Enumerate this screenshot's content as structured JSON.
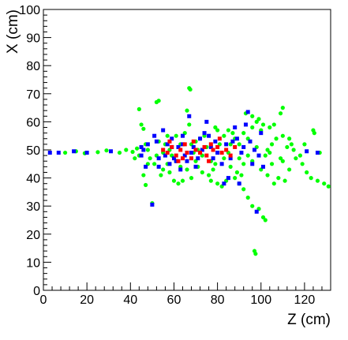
{
  "chart_data": {
    "type": "scatter",
    "title": "",
    "xlabel": "Z (cm)",
    "ylabel": "X (cm)",
    "xlim": [
      0,
      132
    ],
    "ylim": [
      0,
      100
    ],
    "x_ticks": [
      0,
      20,
      40,
      60,
      80,
      100,
      120
    ],
    "y_ticks": [
      0,
      10,
      20,
      30,
      40,
      50,
      60,
      70,
      80,
      90,
      100
    ],
    "grid": false,
    "legend": "none",
    "series": [
      {
        "color": "#00ff00",
        "marker": "circle",
        "points": [
          [
            10,
            49
          ],
          [
            15,
            49.5
          ],
          [
            19,
            48.8
          ],
          [
            25,
            49.2
          ],
          [
            29,
            49.8
          ],
          [
            35,
            49
          ],
          [
            38,
            50
          ],
          [
            41,
            49.3
          ],
          [
            43,
            50.5
          ],
          [
            42,
            47
          ],
          [
            44,
            48
          ],
          [
            45,
            51
          ],
          [
            47,
            52
          ],
          [
            48,
            45
          ],
          [
            46,
            41
          ],
          [
            47,
            37.5
          ],
          [
            50,
            31
          ],
          [
            52,
            67
          ],
          [
            53,
            67.5
          ],
          [
            44,
            64.5
          ],
          [
            45,
            59
          ],
          [
            46,
            57.5
          ],
          [
            56,
            52
          ],
          [
            58,
            50
          ],
          [
            51,
            45
          ],
          [
            57,
            45
          ],
          [
            55,
            43
          ],
          [
            54,
            41
          ],
          [
            58,
            42
          ],
          [
            60,
            39
          ],
          [
            62,
            38
          ],
          [
            64,
            39
          ],
          [
            65,
            56
          ],
          [
            67,
            59
          ],
          [
            66,
            64
          ],
          [
            67,
            72
          ],
          [
            67.5,
            71.5
          ],
          [
            68,
            52
          ],
          [
            69,
            49
          ],
          [
            70,
            46
          ],
          [
            71,
            44
          ],
          [
            72,
            54
          ],
          [
            74,
            55
          ],
          [
            73,
            42
          ],
          [
            76,
            41
          ],
          [
            78,
            43
          ],
          [
            77,
            39
          ],
          [
            80,
            38
          ],
          [
            82,
            37
          ],
          [
            79,
            58
          ],
          [
            80,
            57
          ],
          [
            83,
            55
          ],
          [
            85,
            57
          ],
          [
            87,
            56
          ],
          [
            88,
            54
          ],
          [
            90,
            52
          ],
          [
            92,
            56
          ],
          [
            94,
            54
          ],
          [
            96,
            58
          ],
          [
            98,
            60
          ],
          [
            100,
            57
          ],
          [
            86,
            44
          ],
          [
            88,
            40
          ],
          [
            90,
            38
          ],
          [
            92,
            36
          ],
          [
            94,
            33
          ],
          [
            96,
            30
          ],
          [
            99,
            29
          ],
          [
            101,
            26
          ],
          [
            102,
            25
          ],
          [
            97,
            14
          ],
          [
            97.5,
            13
          ],
          [
            93,
            63
          ],
          [
            96,
            62
          ],
          [
            99,
            61
          ],
          [
            101,
            59
          ],
          [
            104,
            58
          ],
          [
            106,
            59
          ],
          [
            109,
            63
          ],
          [
            110,
            65
          ],
          [
            103,
            50
          ],
          [
            105,
            52
          ],
          [
            107,
            54
          ],
          [
            110,
            55
          ],
          [
            113,
            54
          ],
          [
            110,
            46
          ],
          [
            113,
            43
          ],
          [
            116,
            47
          ],
          [
            105,
            45
          ],
          [
            108,
            40
          ],
          [
            111,
            39
          ],
          [
            119,
            45
          ],
          [
            121,
            42
          ],
          [
            123,
            40
          ],
          [
            126,
            39
          ],
          [
            129,
            38
          ],
          [
            131,
            37
          ],
          [
            124,
            57
          ],
          [
            124.5,
            56
          ],
          [
            118,
            48
          ],
          [
            115,
            50
          ],
          [
            112,
            51
          ],
          [
            120,
            52
          ],
          [
            127,
            49
          ],
          [
            100,
            43
          ],
          [
            103,
            41
          ],
          [
            106,
            38
          ],
          [
            94,
            48
          ],
          [
            96,
            46
          ],
          [
            98,
            51
          ],
          [
            85,
            49
          ],
          [
            83,
            47
          ],
          [
            81,
            52
          ],
          [
            86,
            52
          ],
          [
            90,
            47
          ],
          [
            92,
            45
          ],
          [
            75,
            51
          ],
          [
            73,
            48
          ],
          [
            71,
            50
          ],
          [
            63,
            52
          ],
          [
            61,
            46
          ],
          [
            59,
            48
          ],
          [
            55,
            49
          ],
          [
            53,
            53
          ],
          [
            49,
            47
          ],
          [
            48,
            50
          ],
          [
            52,
            48
          ],
          [
            77,
            46
          ],
          [
            79,
            45
          ],
          [
            89,
            42
          ],
          [
            91,
            41
          ],
          [
            84,
            39
          ],
          [
            57,
            55
          ],
          [
            61,
            55
          ],
          [
            63,
            44
          ],
          [
            66,
            43
          ],
          [
            70,
            53
          ],
          [
            68,
            40
          ],
          [
            102,
            48
          ],
          [
            104,
            49
          ],
          [
            109,
            47
          ],
          [
            114,
            52
          ]
        ]
      },
      {
        "color": "#0000ff",
        "marker": "square",
        "points": [
          [
            3,
            49
          ],
          [
            7,
            49
          ],
          [
            14,
            49.5
          ],
          [
            20,
            49
          ],
          [
            31,
            49.5
          ],
          [
            45,
            48
          ],
          [
            45,
            51
          ],
          [
            46,
            50
          ],
          [
            50,
            30.5
          ],
          [
            51,
            55
          ],
          [
            52,
            53
          ],
          [
            53,
            47
          ],
          [
            53,
            44
          ],
          [
            55,
            57
          ],
          [
            57,
            52
          ],
          [
            59,
            54
          ],
          [
            60,
            47
          ],
          [
            61,
            46
          ],
          [
            62,
            51
          ],
          [
            63,
            43
          ],
          [
            64,
            52
          ],
          [
            65,
            48
          ],
          [
            67,
            62
          ],
          [
            69,
            51
          ],
          [
            71,
            47
          ],
          [
            72,
            54
          ],
          [
            74,
            56
          ],
          [
            75,
            60
          ],
          [
            76,
            55
          ],
          [
            77,
            51
          ],
          [
            78,
            47
          ],
          [
            80,
            49
          ],
          [
            82,
            45
          ],
          [
            84,
            52
          ],
          [
            85,
            40
          ],
          [
            87,
            53
          ],
          [
            88,
            58
          ],
          [
            90,
            38
          ],
          [
            91,
            49
          ],
          [
            93,
            59
          ],
          [
            94,
            63.5
          ],
          [
            95,
            53
          ],
          [
            96,
            45
          ],
          [
            98,
            28
          ],
          [
            99,
            48
          ],
          [
            100,
            56
          ],
          [
            83,
            38
          ],
          [
            70,
            44
          ],
          [
            66,
            46
          ],
          [
            58,
            45
          ],
          [
            48,
            52
          ],
          [
            47,
            44
          ],
          [
            56,
            48
          ],
          [
            73,
            50
          ],
          [
            79,
            53
          ],
          [
            86,
            47
          ],
          [
            92,
            51
          ],
          [
            97,
            50
          ],
          [
            101,
            44
          ],
          [
            121,
            49.5
          ],
          [
            126,
            49
          ],
          [
            59,
            51
          ],
          [
            64,
            55
          ],
          [
            68,
            49
          ],
          [
            89,
            54
          ]
        ]
      },
      {
        "color": "#ff0000",
        "marker": "square",
        "points": [
          [
            55,
            50
          ],
          [
            57,
            49
          ],
          [
            59,
            51
          ],
          [
            61,
            48
          ],
          [
            63,
            50
          ],
          [
            65,
            52
          ],
          [
            66,
            49
          ],
          [
            68,
            47
          ],
          [
            70,
            50
          ],
          [
            72,
            49
          ],
          [
            74,
            51
          ],
          [
            75,
            48
          ],
          [
            77,
            52
          ],
          [
            78,
            50
          ],
          [
            80,
            51
          ],
          [
            82,
            49
          ],
          [
            84,
            50
          ],
          [
            86,
            48
          ],
          [
            88,
            51
          ],
          [
            64,
            47
          ],
          [
            69,
            53
          ],
          [
            76,
            46
          ],
          [
            81,
            54
          ],
          [
            58,
            53
          ],
          [
            62,
            46
          ]
        ]
      }
    ]
  }
}
